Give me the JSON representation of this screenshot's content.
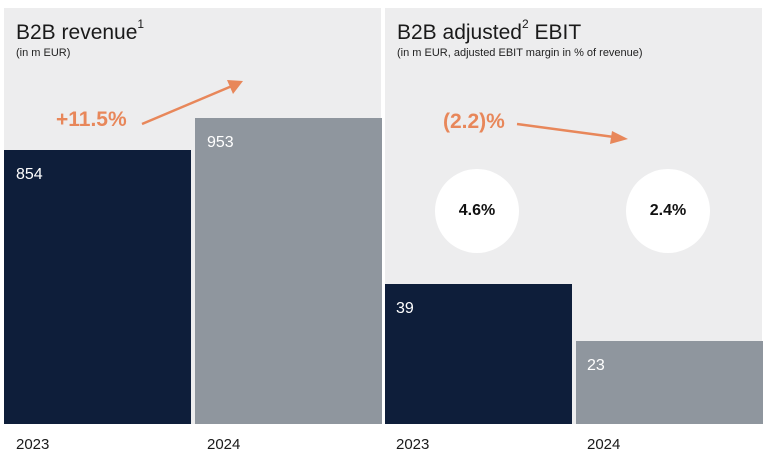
{
  "colors": {
    "panel_bg": "#ededee",
    "bar_2023": "#0e1e3a",
    "bar_2024": "#8f969e",
    "accent": "#e8875a"
  },
  "chart_data": [
    {
      "type": "bar",
      "title": "B2B revenue",
      "title_sup": "1",
      "subtitle": "(in m EUR)",
      "categories": [
        "2023",
        "2024"
      ],
      "values": [
        854,
        953
      ],
      "change_label": "+11.5%"
    },
    {
      "type": "bar",
      "title": "B2B adjusted",
      "title_sup": "2",
      "title_suffix": "EBIT",
      "subtitle": "(in m EUR, adjusted EBIT margin in % of revenue)",
      "categories": [
        "2023",
        "2024"
      ],
      "values": [
        39,
        23
      ],
      "margins": [
        "4.6%",
        "2.4%"
      ],
      "change_label": "(2.2)%"
    }
  ]
}
